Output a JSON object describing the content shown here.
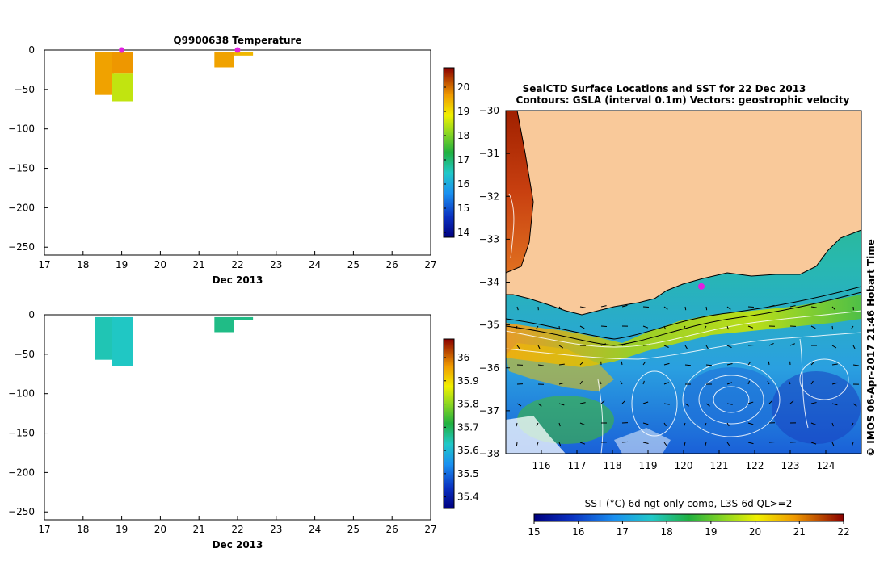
{
  "chart_data": [
    {
      "type": "heatmap",
      "title": "Q9900638  Temperature",
      "xlabel": "Dec 2013",
      "xlim": [
        17,
        27
      ],
      "ylim": [
        -260,
        0
      ],
      "xticks": [
        "17",
        "18",
        "19",
        "20",
        "21",
        "22",
        "23",
        "24",
        "25",
        "26",
        "27"
      ],
      "yticks": [
        "0",
        "−50",
        "−100",
        "−150",
        "−200",
        "−250"
      ],
      "ytick_values": [
        0,
        -50,
        -100,
        -150,
        -200,
        -250
      ],
      "marker_days": [
        19.0,
        22.0
      ],
      "colorbar": {
        "min": 13.8,
        "max": 20.8,
        "ticks": [
          "14",
          "15",
          "16",
          "17",
          "18",
          "19",
          "20"
        ],
        "tick_values": [
          14,
          15,
          16,
          17,
          18,
          19,
          20
        ]
      },
      "profiles": [
        {
          "x0": 18.3,
          "x1": 18.8,
          "ytop": -3,
          "ybot": -57,
          "value": 19.6
        },
        {
          "x0": 18.75,
          "x1": 19.3,
          "ytop": -3,
          "ybot": -30,
          "value": 19.7
        },
        {
          "x0": 18.75,
          "x1": 19.3,
          "ytop": -30,
          "ybot": -65,
          "value": 18.5
        },
        {
          "x0": 21.4,
          "x1": 21.9,
          "ytop": -3,
          "ybot": -22,
          "value": 19.6
        },
        {
          "x0": 21.9,
          "x1": 22.4,
          "ytop": -3,
          "ybot": -7,
          "value": 19.4
        }
      ]
    },
    {
      "type": "heatmap",
      "title": "",
      "xlabel": "Dec 2013",
      "xlim": [
        17,
        27
      ],
      "ylim": [
        -260,
        0
      ],
      "xticks": [
        "17",
        "18",
        "19",
        "20",
        "21",
        "22",
        "23",
        "24",
        "25",
        "26",
        "27"
      ],
      "yticks": [
        "0",
        "−50",
        "−100",
        "−150",
        "−200",
        "−250"
      ],
      "ytick_values": [
        0,
        -50,
        -100,
        -150,
        -200,
        -250
      ],
      "colorbar": {
        "min": 35.35,
        "max": 36.08,
        "ticks": [
          "35.4",
          "35.5",
          "35.6",
          "35.7",
          "35.8",
          "35.9",
          "36"
        ],
        "tick_values": [
          35.4,
          35.5,
          35.6,
          35.7,
          35.8,
          35.9,
          36.0
        ]
      },
      "profiles": [
        {
          "x0": 18.3,
          "x1": 18.8,
          "ytop": -3,
          "ybot": -57,
          "value": 35.64
        },
        {
          "x0": 18.75,
          "x1": 19.3,
          "ytop": -3,
          "ybot": -65,
          "value": 35.63
        },
        {
          "x0": 21.4,
          "x1": 21.9,
          "ytop": -3,
          "ybot": -22,
          "value": 35.67
        },
        {
          "x0": 21.9,
          "x1": 22.4,
          "ytop": -3,
          "ybot": -7,
          "value": 35.67
        }
      ]
    },
    {
      "type": "heatmap",
      "title": "SealCTD Surface Locations and SST for 22 Dec 2013",
      "subtitle": "Contours: GSLA (interval 0.1m) Vectors: geostrophic velocity",
      "xlim": [
        115,
        125
      ],
      "ylim": [
        -38,
        -30
      ],
      "xticks": [
        "116",
        "117",
        "118",
        "119",
        "120",
        "121",
        "122",
        "123",
        "124"
      ],
      "xtick_values": [
        116,
        117,
        118,
        119,
        120,
        121,
        122,
        123,
        124
      ],
      "yticks": [
        "−30",
        "−31",
        "−32",
        "−33",
        "−34",
        "−35",
        "−36",
        "−37",
        "−38"
      ],
      "ytick_values": [
        -30,
        -31,
        -32,
        -33,
        -34,
        -35,
        -36,
        -37,
        -38
      ],
      "seal_location": {
        "lon": 120.5,
        "lat": -34.1
      },
      "colorbar_label": "SST (°C) 6d ngt-only comp, L3S-6d QL>=2",
      "colorbar": {
        "min": 15,
        "max": 22,
        "ticks": [
          "15",
          "16",
          "17",
          "18",
          "19",
          "20",
          "21",
          "22"
        ],
        "tick_values": [
          15,
          16,
          17,
          18,
          19,
          20,
          21,
          22
        ]
      },
      "watermark": "©  IMOS 06-Apr-2017 21:46 Hobart Time",
      "colors": {
        "land": "#f9c99a",
        "marker": "#e020e0"
      }
    }
  ]
}
